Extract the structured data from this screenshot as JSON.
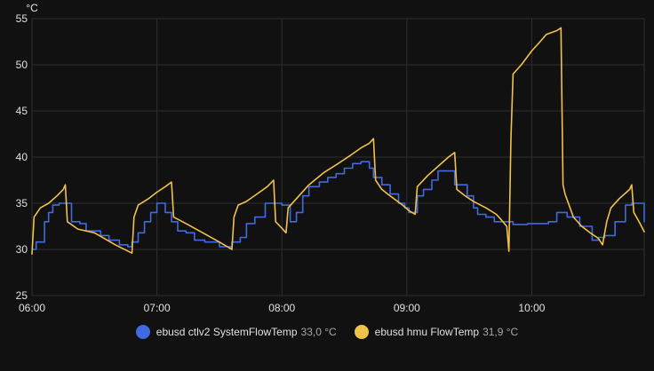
{
  "chart_data": {
    "type": "line",
    "y_unit": "°C",
    "ylim": [
      25,
      55
    ],
    "y_ticks": [
      "55",
      "50",
      "45",
      "40",
      "35",
      "30",
      "25"
    ],
    "x_ticks": [
      "06:00",
      "07:00",
      "08:00",
      "09:00",
      "10:00"
    ],
    "x_range": [
      "06:00",
      "10:54"
    ],
    "grid": true,
    "legend_position": "bottom",
    "series": [
      {
        "name": "ebusd ctlv2 SystemFlowTemp",
        "current_value": "33,0 °C",
        "color": "#4169e1",
        "step": true,
        "points": [
          [
            "06:00",
            30.0
          ],
          [
            "06:02",
            30.8
          ],
          [
            "06:06",
            33.0
          ],
          [
            "06:08",
            34.0
          ],
          [
            "06:10",
            34.8
          ],
          [
            "06:13",
            35.0
          ],
          [
            "06:19",
            33.0
          ],
          [
            "06:23",
            32.8
          ],
          [
            "06:26",
            32.0
          ],
          [
            "06:33",
            31.5
          ],
          [
            "06:37",
            31.0
          ],
          [
            "06:42",
            30.5
          ],
          [
            "06:46",
            30.3
          ],
          [
            "06:48",
            30.8
          ],
          [
            "06:51",
            31.8
          ],
          [
            "06:54",
            33.0
          ],
          [
            "06:57",
            34.0
          ],
          [
            "07:00",
            35.0
          ],
          [
            "07:04",
            34.0
          ],
          [
            "07:07",
            33.0
          ],
          [
            "07:10",
            32.0
          ],
          [
            "07:14",
            31.8
          ],
          [
            "07:18",
            31.0
          ],
          [
            "07:23",
            30.8
          ],
          [
            "07:30",
            30.3
          ],
          [
            "07:36",
            30.8
          ],
          [
            "07:40",
            31.3
          ],
          [
            "07:43",
            32.8
          ],
          [
            "07:47",
            33.5
          ],
          [
            "07:52",
            35.0
          ],
          [
            "08:00",
            34.8
          ],
          [
            "08:04",
            33.0
          ],
          [
            "08:07",
            34.0
          ],
          [
            "08:10",
            35.8
          ],
          [
            "08:13",
            36.8
          ],
          [
            "08:18",
            37.3
          ],
          [
            "08:22",
            37.8
          ],
          [
            "08:26",
            38.2
          ],
          [
            "08:30",
            38.8
          ],
          [
            "08:34",
            39.3
          ],
          [
            "08:38",
            39.5
          ],
          [
            "08:42",
            38.8
          ],
          [
            "08:44",
            37.8
          ],
          [
            "08:48",
            37.0
          ],
          [
            "08:52",
            36.0
          ],
          [
            "08:56",
            35.0
          ],
          [
            "08:59",
            34.5
          ],
          [
            "09:01",
            34.0
          ],
          [
            "09:05",
            35.8
          ],
          [
            "09:08",
            36.5
          ],
          [
            "09:12",
            37.5
          ],
          [
            "09:15",
            38.5
          ],
          [
            "09:20",
            38.5
          ],
          [
            "09:23",
            37.0
          ],
          [
            "09:29",
            35.8
          ],
          [
            "09:32",
            34.5
          ],
          [
            "09:34",
            33.8
          ],
          [
            "09:38",
            33.5
          ],
          [
            "09:42",
            33.0
          ],
          [
            "09:51",
            32.7
          ],
          [
            "09:58",
            32.8
          ],
          [
            "10:08",
            33.0
          ],
          [
            "10:12",
            34.0
          ],
          [
            "10:17",
            33.5
          ],
          [
            "10:23",
            32.5
          ],
          [
            "10:29",
            31.0
          ],
          [
            "10:32",
            31.3
          ],
          [
            "10:35",
            31.5
          ],
          [
            "10:40",
            33.0
          ],
          [
            "10:45",
            34.8
          ],
          [
            "10:48",
            35.0
          ],
          [
            "10:54",
            33.0
          ]
        ]
      },
      {
        "name": "ebusd hmu FlowTemp",
        "current_value": "31,9 °C",
        "color": "#f0c24a",
        "step": false,
        "points": [
          [
            "06:00",
            29.5
          ],
          [
            "06:01",
            33.5
          ],
          [
            "06:04",
            34.5
          ],
          [
            "06:08",
            35.0
          ],
          [
            "06:12",
            35.8
          ],
          [
            "06:15",
            36.5
          ],
          [
            "06:16",
            37.0
          ],
          [
            "06:17",
            33.0
          ],
          [
            "06:22",
            32.2
          ],
          [
            "06:30",
            31.8
          ],
          [
            "06:40",
            30.5
          ],
          [
            "06:48",
            29.6
          ],
          [
            "06:49",
            33.5
          ],
          [
            "06:51",
            34.8
          ],
          [
            "06:56",
            35.5
          ],
          [
            "07:00",
            36.2
          ],
          [
            "07:04",
            36.8
          ],
          [
            "07:07",
            37.3
          ],
          [
            "07:08",
            33.5
          ],
          [
            "07:14",
            32.8
          ],
          [
            "07:22",
            31.8
          ],
          [
            "07:30",
            30.8
          ],
          [
            "07:36",
            30.0
          ],
          [
            "07:37",
            33.5
          ],
          [
            "07:39",
            34.8
          ],
          [
            "07:43",
            35.2
          ],
          [
            "07:48",
            36.0
          ],
          [
            "07:53",
            36.8
          ],
          [
            "07:56",
            37.5
          ],
          [
            "07:57",
            33.0
          ],
          [
            "08:00",
            32.3
          ],
          [
            "08:02",
            31.8
          ],
          [
            "08:03",
            34.5
          ],
          [
            "08:07",
            35.5
          ],
          [
            "08:13",
            37.0
          ],
          [
            "08:20",
            38.3
          ],
          [
            "08:27",
            39.3
          ],
          [
            "08:33",
            40.2
          ],
          [
            "08:38",
            41.0
          ],
          [
            "08:42",
            41.5
          ],
          [
            "08:44",
            42.0
          ],
          [
            "08:45",
            37.5
          ],
          [
            "08:48",
            36.5
          ],
          [
            "08:52",
            35.8
          ],
          [
            "08:58",
            34.8
          ],
          [
            "09:01",
            34.2
          ],
          [
            "09:04",
            33.8
          ],
          [
            "09:05",
            36.8
          ],
          [
            "09:10",
            38.0
          ],
          [
            "09:15",
            39.0
          ],
          [
            "09:20",
            40.0
          ],
          [
            "09:23",
            40.5
          ],
          [
            "09:24",
            36.5
          ],
          [
            "09:28",
            35.8
          ],
          [
            "09:32",
            35.2
          ],
          [
            "09:38",
            34.5
          ],
          [
            "09:43",
            33.8
          ],
          [
            "09:45",
            33.3
          ],
          [
            "09:48",
            32.5
          ],
          [
            "09:49",
            29.8
          ],
          [
            "09:50",
            42.0
          ],
          [
            "09:51",
            49.0
          ],
          [
            "09:55",
            50.0
          ],
          [
            "10:00",
            51.5
          ],
          [
            "10:04",
            52.5
          ],
          [
            "10:07",
            53.3
          ],
          [
            "10:12",
            53.7
          ],
          [
            "10:14",
            54.0
          ],
          [
            "10:15",
            37.0
          ],
          [
            "10:16",
            36.0
          ],
          [
            "10:20",
            33.5
          ],
          [
            "10:24",
            32.5
          ],
          [
            "10:28",
            31.8
          ],
          [
            "10:32",
            31.2
          ],
          [
            "10:34",
            30.5
          ],
          [
            "10:36",
            33.0
          ],
          [
            "10:38",
            34.5
          ],
          [
            "10:42",
            35.5
          ],
          [
            "10:47",
            36.5
          ],
          [
            "10:48",
            37.0
          ],
          [
            "10:49",
            34.0
          ],
          [
            "10:52",
            32.8
          ],
          [
            "10:54",
            31.9
          ]
        ]
      }
    ]
  }
}
